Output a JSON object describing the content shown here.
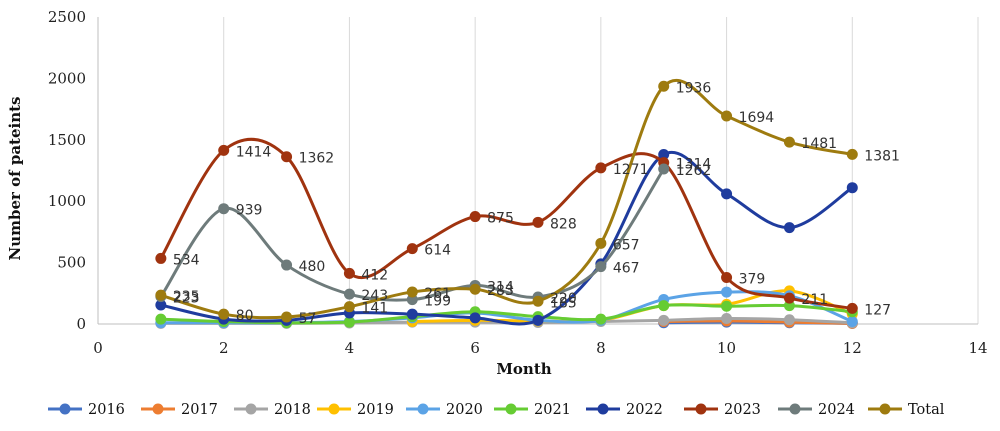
{
  "chart_data": {
    "type": "line",
    "xlabel": "Month",
    "ylabel": "Number of pateints",
    "xlim": [
      0,
      14
    ],
    "ylim": [
      0,
      2500
    ],
    "xticks": [
      0,
      2,
      4,
      6,
      8,
      10,
      12,
      14
    ],
    "yticks": [
      0,
      500,
      1000,
      1500,
      2000,
      2500
    ],
    "grid": "vertical",
    "legend": "bottom",
    "series": [
      {
        "name": "2016",
        "color": "#4472C4",
        "x": [
          9,
          10,
          11,
          12
        ],
        "values": [
          10,
          15,
          10,
          5
        ],
        "labels": []
      },
      {
        "name": "2017",
        "color": "#ED7D31",
        "x": [
          9,
          10,
          11,
          12
        ],
        "values": [
          20,
          25,
          15,
          5
        ],
        "labels": []
      },
      {
        "name": "2018",
        "color": "#A5A5A5",
        "x": [
          1,
          2,
          3,
          4,
          5,
          6,
          7,
          8,
          9,
          10,
          11,
          12
        ],
        "values": [
          5,
          5,
          5,
          8,
          15,
          15,
          12,
          20,
          30,
          45,
          35,
          10
        ],
        "labels": []
      },
      {
        "name": "2019",
        "color": "#FFC000",
        "x": [
          5,
          6,
          7,
          8,
          9,
          10,
          11,
          12
        ],
        "values": [
          20,
          30,
          25,
          30,
          150,
          160,
          270,
          80
        ],
        "labels": []
      },
      {
        "name": "2020",
        "color": "#5BA3E6",
        "x": [
          1,
          2,
          3,
          4,
          5,
          6,
          7,
          8,
          9,
          10,
          11,
          12
        ],
        "values": [
          10,
          10,
          10,
          20,
          50,
          90,
          30,
          30,
          200,
          260,
          230,
          20
        ],
        "labels": []
      },
      {
        "name": "2021",
        "color": "#66CC33",
        "x": [
          1,
          2,
          3,
          4,
          5,
          6,
          7,
          8,
          9,
          10,
          11,
          12
        ],
        "values": [
          40,
          20,
          10,
          15,
          60,
          100,
          60,
          40,
          150,
          145,
          150,
          100
        ],
        "labels": []
      },
      {
        "name": "2022",
        "color": "#1F3C9E",
        "x": [
          1,
          2,
          3,
          4,
          5,
          6,
          7,
          8,
          9,
          10,
          11,
          12
        ],
        "values": [
          155,
          40,
          30,
          90,
          80,
          50,
          30,
          490,
          1380,
          1060,
          785,
          1110
        ],
        "labels": []
      },
      {
        "name": "2023",
        "color": "#A0330F",
        "x": [
          1,
          2,
          3,
          4,
          5,
          6,
          7,
          8,
          9,
          10,
          11,
          12
        ],
        "values": [
          534,
          1414,
          1362,
          412,
          614,
          875,
          828,
          1271,
          1314,
          379,
          211,
          127
        ],
        "labels": [
          "534",
          "1414",
          "1362",
          "412",
          "614",
          "875",
          "828",
          "1271",
          "1314",
          "379",
          "211",
          "127"
        ]
      },
      {
        "name": "2024",
        "color": "#6E7B7B",
        "x": [
          1,
          2,
          3,
          4,
          5,
          6,
          7,
          8,
          9
        ],
        "values": [
          223,
          939,
          480,
          243,
          199,
          314,
          220,
          467,
          1262
        ],
        "labels": [
          "223",
          "939",
          "480",
          "243",
          "199",
          "314",
          "220",
          "467",
          "1262"
        ]
      },
      {
        "name": "Total",
        "color": "#9E7B0F",
        "x": [
          1,
          2,
          3,
          4,
          5,
          6,
          7,
          8,
          9,
          10,
          11,
          12
        ],
        "values": [
          235,
          80,
          57,
          141,
          261,
          283,
          185,
          657,
          1936,
          1694,
          1481,
          1381
        ],
        "labels": [
          "235",
          "80",
          "57",
          "141",
          "261",
          "283",
          "185",
          "657",
          "1936",
          "1694",
          "1481",
          "1381"
        ]
      }
    ]
  }
}
